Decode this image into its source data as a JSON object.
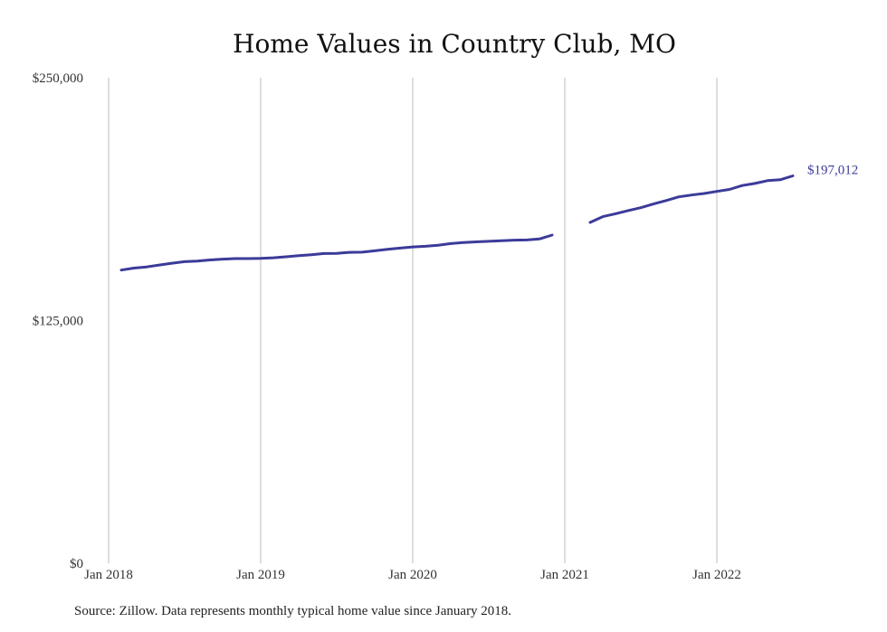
{
  "chart_data": {
    "type": "line",
    "title": "Home Values in Country Club, MO",
    "xlabel": "",
    "ylabel": "",
    "ylim": [
      0,
      250000
    ],
    "y_ticks": [
      {
        "value": 0,
        "label": "$0"
      },
      {
        "value": 125000,
        "label": "$125,000"
      },
      {
        "value": 250000,
        "label": "$250,000"
      }
    ],
    "x_ticks": [
      "Jan 2018",
      "Jan 2019",
      "Jan 2020",
      "Jan 2021",
      "Jan 2022"
    ],
    "x_grid": true,
    "y_grid": false,
    "legend": "none",
    "color": "#3b3b9a",
    "series": [
      {
        "segments": [
          {
            "x": [
              "2018-02",
              "2018-03",
              "2018-04",
              "2018-05",
              "2018-06",
              "2018-07",
              "2018-08",
              "2018-09",
              "2018-10",
              "2018-11",
              "2018-12",
              "2019-01",
              "2019-02",
              "2019-03",
              "2019-04",
              "2019-05",
              "2019-06",
              "2019-07",
              "2019-08",
              "2019-09",
              "2019-10",
              "2019-11",
              "2019-12",
              "2020-01",
              "2020-02",
              "2020-03",
              "2020-04",
              "2020-05",
              "2020-06",
              "2020-07",
              "2020-08",
              "2020-09",
              "2020-10",
              "2020-11",
              "2020-12"
            ],
            "y": [
              151000,
              152000,
              152600,
              153600,
              154500,
              155300,
              155600,
              156200,
              156600,
              156900,
              156900,
              157000,
              157300,
              157800,
              158400,
              158900,
              159500,
              159600,
              160100,
              160200,
              160900,
              161700,
              162300,
              162900,
              163200,
              163800,
              164600,
              165200,
              165500,
              165800,
              166100,
              166400,
              166500,
              167000,
              169000
            ]
          },
          {
            "x": [
              "2021-03",
              "2021-04",
              "2021-05",
              "2021-06",
              "2021-07",
              "2021-08",
              "2021-09",
              "2021-10",
              "2021-11",
              "2021-12",
              "2022-01",
              "2022-02",
              "2022-03",
              "2022-04",
              "2022-05",
              "2022-06",
              "2022-07"
            ],
            "y": [
              175500,
              178500,
              180000,
              181600,
              183100,
              185000,
              186800,
              188700,
              189600,
              190400,
              191500,
              192500,
              194500,
              195600,
              197000,
              197500,
              199500
            ]
          }
        ]
      }
    ],
    "end_label": "$197,012"
  },
  "source_note": "Source: Zillow. Data represents monthly typical home value since January 2018."
}
